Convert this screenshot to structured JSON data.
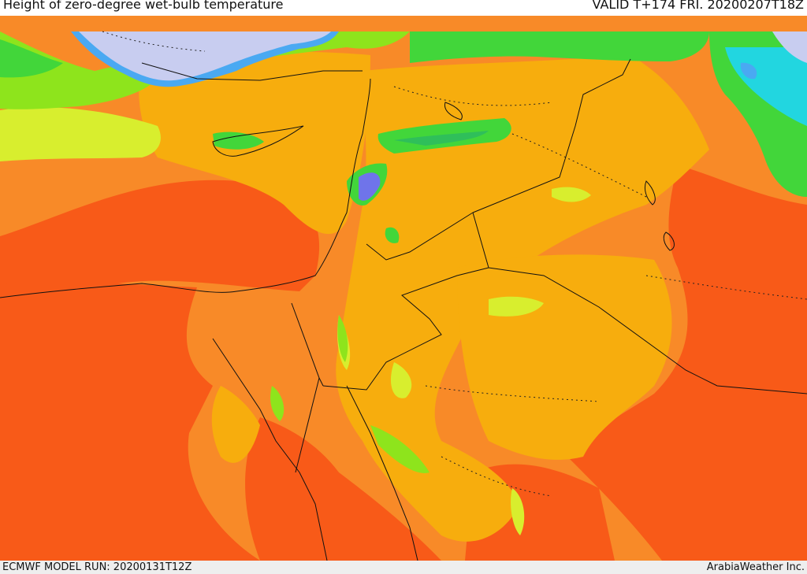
{
  "header": {
    "title": "Height of zero-degree wet-bulb temperature",
    "valid": "VALID T+174 FRI. 20200207T18Z"
  },
  "footer": {
    "model_run": "ECMWF MODEL RUN: 20200131T12Z",
    "credit": "ArabiaWeather Inc."
  },
  "map": {
    "color_scale": [
      "#c8cdf0",
      "#6f74ea",
      "#4aa9f2",
      "#22d6e0",
      "#2fbf5a",
      "#42d63a",
      "#8ee41c",
      "#d8ee2e",
      "#f7d21a",
      "#f7ad0d",
      "#f88a28",
      "#f85a18"
    ]
  }
}
